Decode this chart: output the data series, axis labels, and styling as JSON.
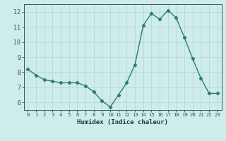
{
  "xlabel": "Humidex (Indice chaleur)",
  "x": [
    0,
    1,
    2,
    3,
    4,
    5,
    6,
    7,
    8,
    9,
    10,
    11,
    12,
    13,
    14,
    15,
    16,
    17,
    18,
    19,
    20,
    21,
    22,
    23
  ],
  "y": [
    8.2,
    7.8,
    7.5,
    7.4,
    7.3,
    7.3,
    7.3,
    7.1,
    6.7,
    6.1,
    5.7,
    6.5,
    7.3,
    8.5,
    11.1,
    11.9,
    11.5,
    12.1,
    11.6,
    10.3,
    8.9,
    7.6,
    6.6,
    6.6
  ],
  "line_color": "#2e7d6e",
  "marker": "D",
  "marker_size": 2.2,
  "line_width": 1.0,
  "bg_color": "#ceecea",
  "grid_color": "#b8d8d5",
  "tick_label_color": "#2e5a54",
  "axis_label_color": "#1a3a36",
  "ylim": [
    5.5,
    12.5
  ],
  "yticks": [
    6,
    7,
    8,
    9,
    10,
    11,
    12
  ],
  "xticks": [
    0,
    1,
    2,
    3,
    4,
    5,
    6,
    7,
    8,
    9,
    10,
    11,
    12,
    13,
    14,
    15,
    16,
    17,
    18,
    19,
    20,
    21,
    22,
    23
  ]
}
